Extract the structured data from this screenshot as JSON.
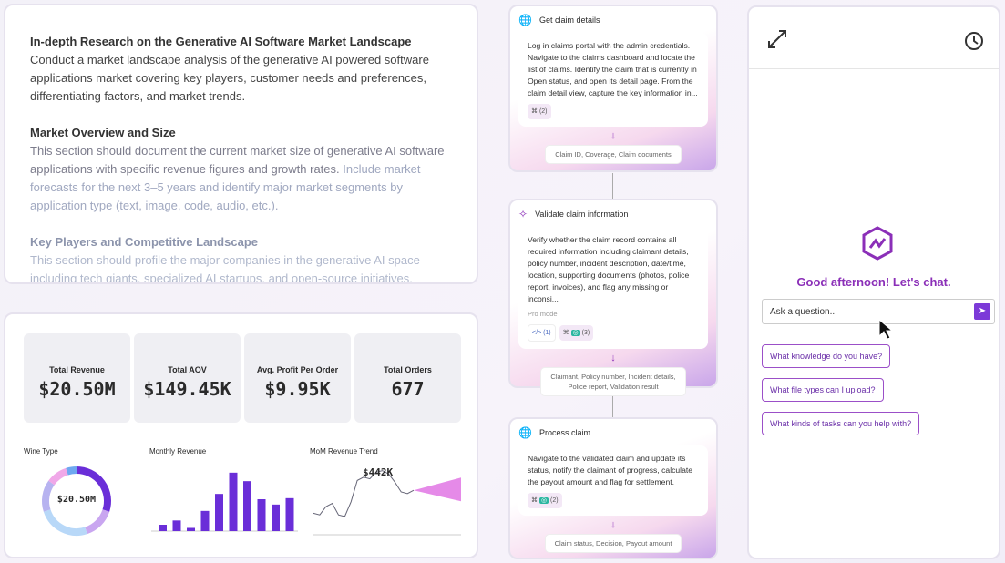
{
  "document": {
    "title": "In-depth Research on the Generative AI Software Market Landscape",
    "intro": "Conduct a market landscape analysis of the generative AI powered software applications market covering key players, customer needs and preferences, differentiating factors, and market trends.",
    "sections": [
      {
        "heading": "Market Overview and Size",
        "text1": "This section should document the current market size of generative AI software applications with specific revenue figures and growth rates.",
        "text2": "Include market forecasts for the next 3–5 years and identify major market segments by application type (text, image, code, audio, etc.)."
      },
      {
        "heading": "Key Players and Competitive Landscape",
        "text1": "This section should profile the major companies in the generative AI space including tech giants, specialized AI startups, and open-source initiatives."
      }
    ]
  },
  "dashboard": {
    "kpis": [
      {
        "label": "Total Revenue",
        "value": "$20.50M"
      },
      {
        "label": "Total AOV",
        "value": "$149.45K"
      },
      {
        "label": "Avg. Profit Per Order",
        "value": "$9.95K"
      },
      {
        "label": "Total Orders",
        "value": "677"
      }
    ]
  },
  "chart_data": [
    {
      "type": "pie",
      "title": "Wine Type",
      "center_label": "$20.50M",
      "values": [
        30,
        15,
        25,
        15,
        10,
        5
      ],
      "colors": [
        "#6a2ed8",
        "#c9a6f0",
        "#b8d8f8",
        "#b7b3f0",
        "#f0a8e8",
        "#6ea8f0"
      ]
    },
    {
      "type": "bar",
      "title": "Monthly Revenue",
      "values": [
        0.6,
        1.0,
        0.3,
        1.9,
        3.5,
        5.5,
        4.7,
        3.0,
        2.5,
        3.1
      ],
      "color": "#6a2ed8"
    },
    {
      "type": "line",
      "title": "MoM Revenue Trend",
      "annotation": "$442K",
      "values": [
        1.2,
        1.1,
        1.6,
        1.8,
        1.1,
        1.0,
        1.9,
        3.2,
        3.4,
        3.3,
        3.7,
        3.8,
        3.6,
        3.1,
        2.5,
        2.4,
        2.6
      ],
      "forecast_color": "#e58ae8"
    }
  ],
  "flow": [
    {
      "icon": "globe-icon",
      "title": "Get claim details",
      "body": "Log in claims portal with the admin credentials. Navigate to the claims dashboard and locate the list of claims. Identify the claim that is currently in Open status, and open its detail page. From the claim detail view, capture the key information in...",
      "tags": [
        "(2)"
      ],
      "output": "Claim ID, Coverage, Claim documents"
    },
    {
      "icon": "sparkle-icon",
      "title": "Validate claim information",
      "body": "Verify whether the claim record contains all required information including claimant details, policy number, incident description, date/time, location, supporting documents (photos, police report, invoices), and flag any missing or inconsi...",
      "mode": "Pro mode",
      "code_tag": "(1)",
      "tags": [
        "(3)"
      ],
      "output": "Claimant, Policy number, Incident details, Police report, Validation result"
    },
    {
      "icon": "globe-icon",
      "title": "Process claim",
      "body": "Navigate to the validated claim and update its status, notify the claimant of progress, calculate the payout amount and flag for settlement.",
      "tags": [
        "(2)"
      ],
      "output": "Claim status, Decision, Payout amount"
    }
  ],
  "chat": {
    "greeting": "Good afternoon! Let's chat.",
    "placeholder": "Ask a question...",
    "suggestions": [
      "What knowledge do you have?",
      "What file types can I upload?",
      "What kinds of tasks can you help with?"
    ]
  }
}
